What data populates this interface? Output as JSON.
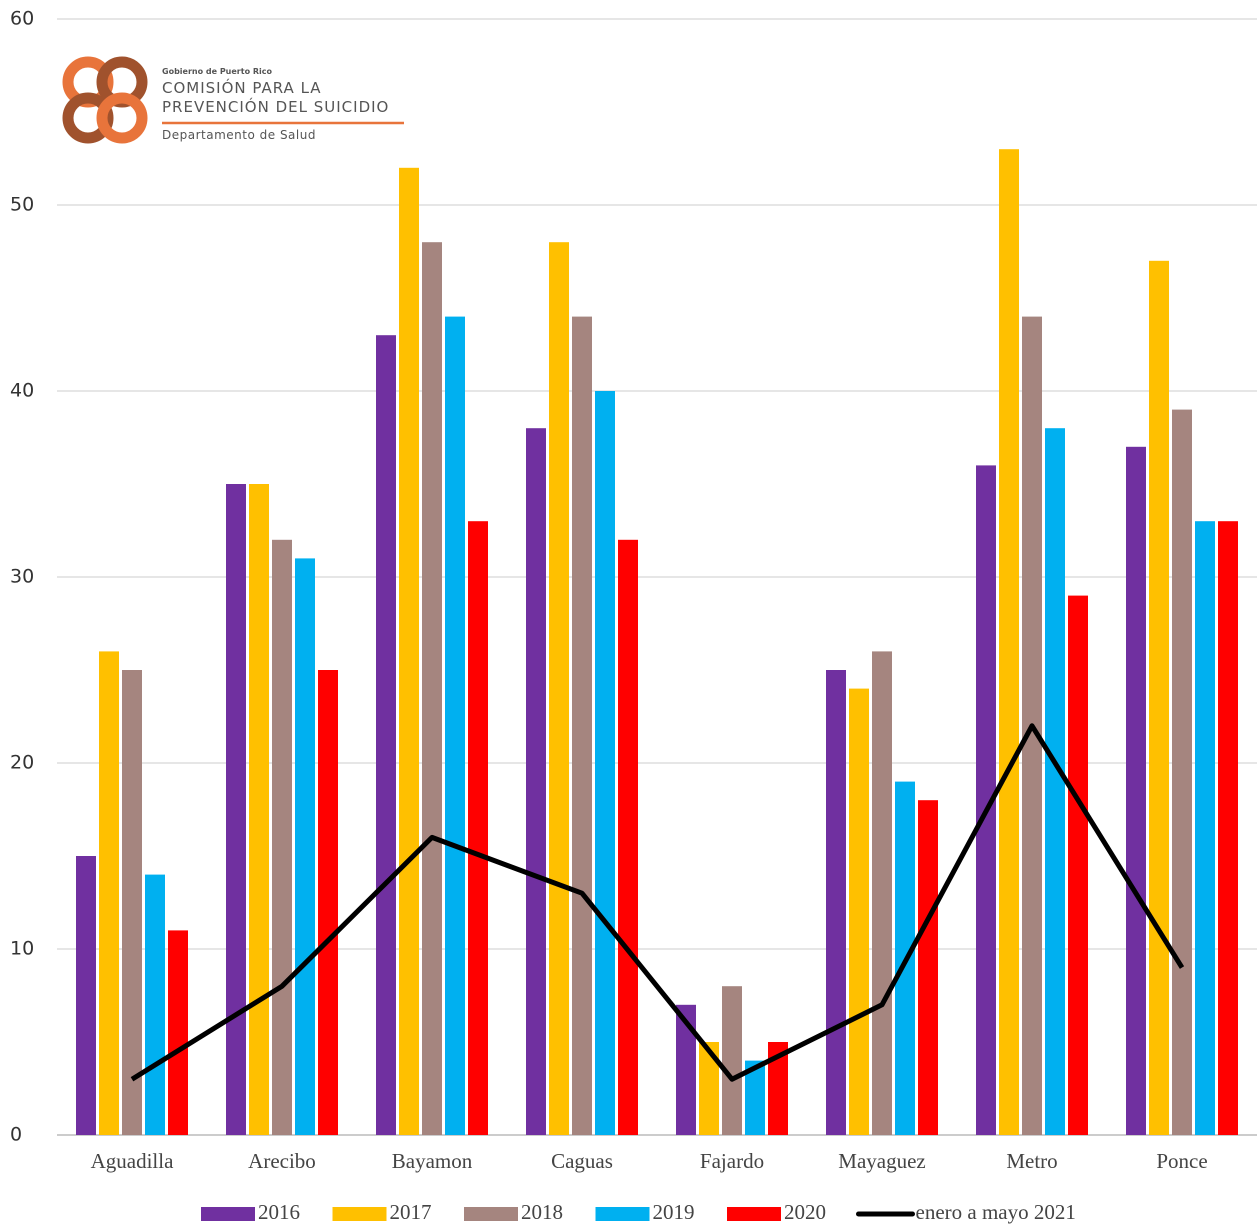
{
  "logo": {
    "line1": "Gobierno de Puerto Rico",
    "line2": "COMISIÓN PARA LA",
    "line3": "PREVENCIÓN DEL SUICIDIO",
    "line4": "Departamento de Salud"
  },
  "chart_data": {
    "type": "bar",
    "categories": [
      "Aguadilla",
      "Arecibo",
      "Bayamon",
      "Caguas",
      "Fajardo",
      "Mayaguez",
      "Metro",
      "Ponce"
    ],
    "series": [
      {
        "name": "2016",
        "color": "#7030a0",
        "values": [
          15,
          35,
          43,
          38,
          7,
          25,
          36,
          37
        ]
      },
      {
        "name": "2017",
        "color": "#ffc000",
        "values": [
          26,
          35,
          52,
          48,
          5,
          24,
          53,
          47
        ]
      },
      {
        "name": "2018",
        "color": "#a5857f",
        "values": [
          25,
          32,
          48,
          44,
          8,
          26,
          44,
          39
        ]
      },
      {
        "name": "2019",
        "color": "#00b0f0",
        "values": [
          14,
          31,
          44,
          40,
          4,
          19,
          38,
          33
        ]
      },
      {
        "name": "2020",
        "color": "#ff0000",
        "values": [
          11,
          25,
          33,
          32,
          5,
          18,
          29,
          33
        ]
      },
      {
        "name": "enero a mayo 2021",
        "color": "#000000",
        "type": "line",
        "values": [
          3,
          8,
          16,
          13,
          3,
          7,
          22,
          9
        ]
      }
    ],
    "ylim": [
      0,
      60
    ],
    "yticks": [
      0,
      10,
      20,
      30,
      40,
      50,
      60
    ],
    "grid": true,
    "legend": "bottom"
  }
}
